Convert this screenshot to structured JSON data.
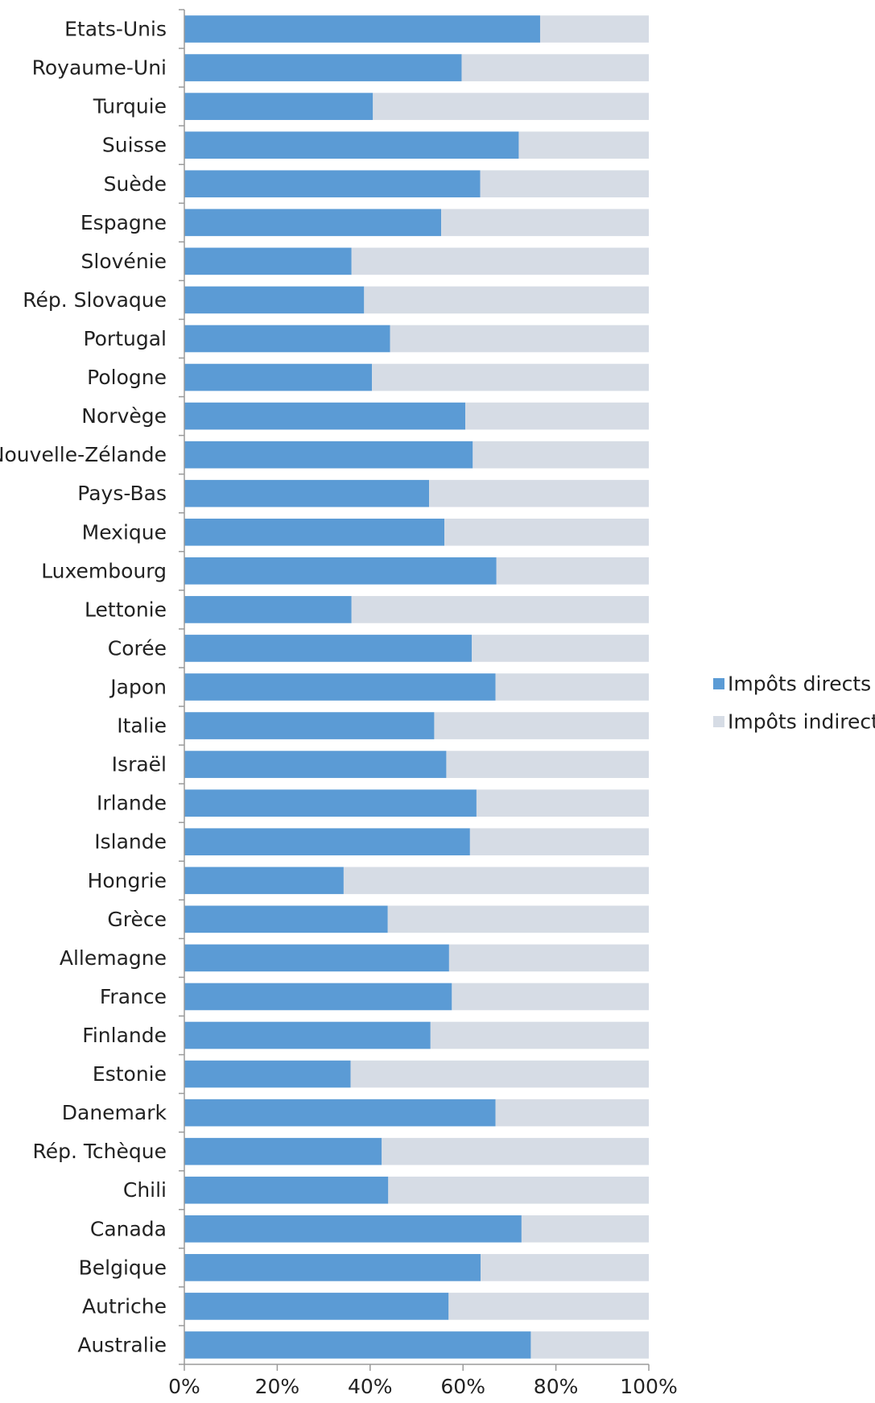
{
  "chart_data": {
    "type": "bar",
    "orientation": "horizontal",
    "stacked": true,
    "percent_stacked": true,
    "title": "",
    "xlabel": "",
    "ylabel": "",
    "xlim": [
      0,
      100
    ],
    "x_ticks": [
      "0%",
      "20%",
      "40%",
      "60%",
      "80%",
      "100%"
    ],
    "grid": false,
    "legend_position": "right",
    "categories": [
      "Etats-Unis",
      "Royaume-Uni",
      "Turquie",
      "Suisse",
      "Suède",
      "Espagne",
      "Slovénie",
      "Rép. Slovaque",
      "Portugal",
      "Pologne",
      "Norvège",
      "Nouvelle-Zélande",
      "Pays-Bas",
      "Mexique",
      "Luxembourg",
      "Lettonie",
      "Corée",
      "Japon",
      "Italie",
      "Israël",
      "Irlande",
      "Islande",
      "Hongrie",
      "Grèce",
      "Allemagne",
      "France",
      "Finlande",
      "Estonie",
      "Danemark",
      "Rép. Tchèque",
      "Chili",
      "Canada",
      "Belgique",
      "Autriche",
      "Australie"
    ],
    "series": [
      {
        "name": "Impôts directs",
        "color": "#5b9bd5",
        "values": [
          76.6,
          59.7,
          40.6,
          72.0,
          63.7,
          55.3,
          36.0,
          38.7,
          44.3,
          40.4,
          60.5,
          62.1,
          52.7,
          56.0,
          67.2,
          36.0,
          61.9,
          67.0,
          53.8,
          56.4,
          62.9,
          61.5,
          34.3,
          43.8,
          57.0,
          57.6,
          53.0,
          35.8,
          67.0,
          42.5,
          43.9,
          72.6,
          63.8,
          56.9,
          74.6
        ]
      },
      {
        "name": "Impôts indirects",
        "color": "#d6dce5",
        "values": [
          23.4,
          40.3,
          59.4,
          28.0,
          36.3,
          44.7,
          64.0,
          61.3,
          55.7,
          59.6,
          39.5,
          37.9,
          47.3,
          44.0,
          32.8,
          64.0,
          38.1,
          33.0,
          46.2,
          43.6,
          37.1,
          38.5,
          65.7,
          56.2,
          43.0,
          42.4,
          47.0,
          64.2,
          33.0,
          57.5,
          56.1,
          27.4,
          36.2,
          43.1,
          25.4
        ]
      }
    ]
  }
}
